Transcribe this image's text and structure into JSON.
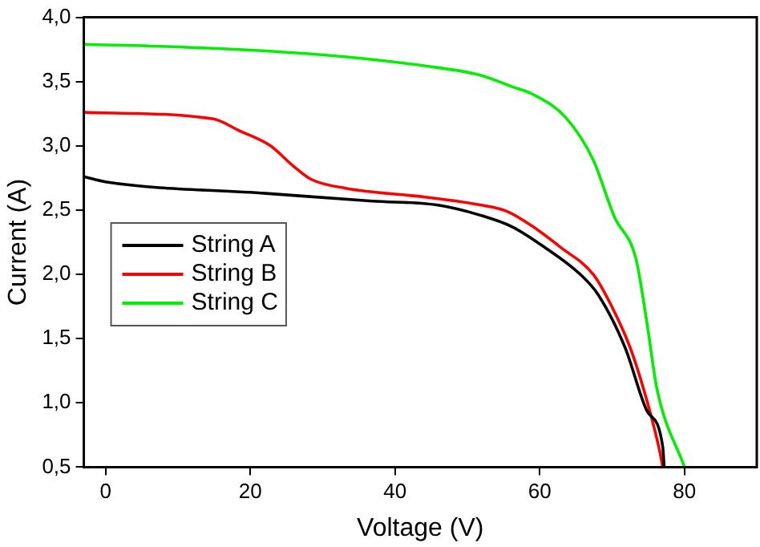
{
  "chart_data": {
    "type": "line",
    "xlabel": "Voltage (V)",
    "ylabel": "Current (A)",
    "xlim": [
      -3,
      90
    ],
    "xticks": [
      0,
      20,
      40,
      60,
      80
    ],
    "ylim": [
      0.5,
      4.0
    ],
    "yticks": [
      {
        "value": 0.5,
        "label": "0,5"
      },
      {
        "value": 1.0,
        "label": "1,0"
      },
      {
        "value": 1.5,
        "label": "1,5"
      },
      {
        "value": 2.0,
        "label": "2,0"
      },
      {
        "value": 2.5,
        "label": "2,5"
      },
      {
        "value": 3.0,
        "label": "3,0"
      },
      {
        "value": 3.5,
        "label": "3,5"
      },
      {
        "value": 4.0,
        "label": "4,0"
      }
    ],
    "legend": "left",
    "grid": false,
    "marker": "none",
    "line_style": "solid",
    "series": [
      {
        "name": "String A",
        "color": "#000000",
        "x": [
          -3,
          0,
          22.2,
          36.9,
          45.8,
          51.8,
          56.2,
          60.7,
          65.6,
          68.1,
          71.8,
          74.8,
          77,
          77.2
        ],
        "values": [
          2.76,
          2.72,
          2.63,
          2.57,
          2.54,
          2.46,
          2.37,
          2.21,
          2.0,
          1.84,
          1.43,
          0.94,
          0.66,
          0.5
        ]
      },
      {
        "name": "String B",
        "color": "#ff0000",
        "x": [
          -3,
          14.9,
          18.4,
          22.8,
          25.8,
          28.4,
          33.2,
          44.4,
          51.8,
          55.5,
          59.1,
          62.9,
          67.4,
          69.6,
          72.5,
          74.8,
          76.6,
          77
        ],
        "values": [
          3.26,
          3.21,
          3.12,
          3.0,
          2.85,
          2.74,
          2.67,
          2.6,
          2.54,
          2.49,
          2.37,
          2.21,
          2.0,
          1.79,
          1.43,
          1.02,
          0.62,
          0.5
        ]
      },
      {
        "name": "String C",
        "color": "#00ee00",
        "x": [
          -3,
          10,
          29.5,
          44.4,
          51.8,
          56.2,
          59.1,
          63.6,
          67.4,
          70.3,
          73.3,
          74.8,
          76.2,
          80
        ],
        "values": [
          3.79,
          3.77,
          3.71,
          3.62,
          3.55,
          3.46,
          3.4,
          3.22,
          2.89,
          2.45,
          2.12,
          1.63,
          1.11,
          0.5
        ]
      }
    ]
  }
}
